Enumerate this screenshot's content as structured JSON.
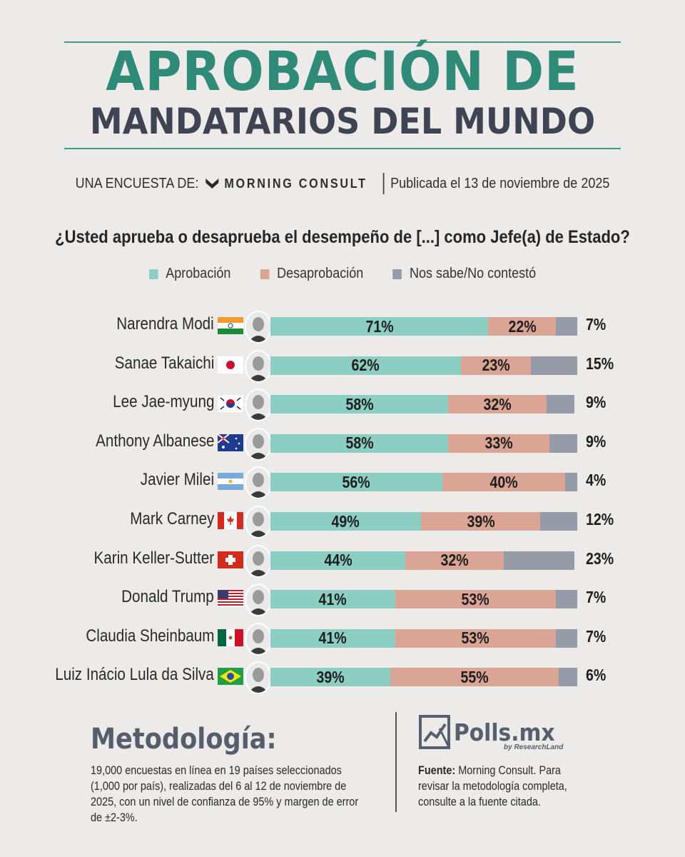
{
  "header": {
    "title_line1": "APROBACIÓN DE",
    "title_line2": "MANDATARIOS DEL MUNDO",
    "survey_by": "UNA ENCUESTA DE:",
    "brand": "MORNING CONSULT",
    "published": "Publicada el 13 de noviembre de 2025",
    "question": "¿Usted aprueba o desaprueba el desempeño de [...] como Jefe(a) de Estado?"
  },
  "legend": [
    {
      "label": "Aprobación",
      "color": "#8ccfc2"
    },
    {
      "label": "Desaprobación",
      "color": "#dba595"
    },
    {
      "label": "Nos sabe/No contestó",
      "color": "#959ba7"
    }
  ],
  "chart_data": {
    "type": "bar",
    "orientation": "horizontal",
    "stacked": true,
    "categories": [
      "Narendra Modi",
      "Sanae Takaichi",
      "Lee Jae-myung",
      "Anthony Albanese",
      "Javier Milei",
      "Mark Carney",
      "Karin Keller-Sutter",
      "Donald Trump",
      "Claudia Sheinbaum",
      "Luiz Inácio Lula da Silva"
    ],
    "series": [
      {
        "name": "Aprobación",
        "values": [
          71,
          62,
          58,
          58,
          56,
          49,
          44,
          41,
          41,
          39
        ]
      },
      {
        "name": "Desaprobación",
        "values": [
          22,
          23,
          32,
          33,
          40,
          39,
          32,
          53,
          53,
          55
        ]
      },
      {
        "name": "Nos sabe/No contestó",
        "values": [
          7,
          15,
          9,
          9,
          4,
          12,
          23,
          7,
          7,
          6
        ]
      }
    ],
    "unit": "%",
    "flags": [
      "india",
      "japan",
      "south-korea",
      "australia",
      "argentina",
      "canada",
      "switzerland",
      "usa",
      "mexico",
      "brazil"
    ]
  },
  "methodology": {
    "title": "Metodología:",
    "text": "19,000 encuestas en línea en 19 países seleccionados (1,000 por país), realizadas del 6 al 12 de noviembre de 2025, con un nivel de confianza de 95% y margen de error de ±2-3%."
  },
  "footer": {
    "logo_name": "Polls.mx",
    "logo_sub": "by ResearchLand",
    "source_label": "Fuente:",
    "source_text": " Morning Consult. Para revisar la metodología completa, consulte a la fuente citada."
  }
}
